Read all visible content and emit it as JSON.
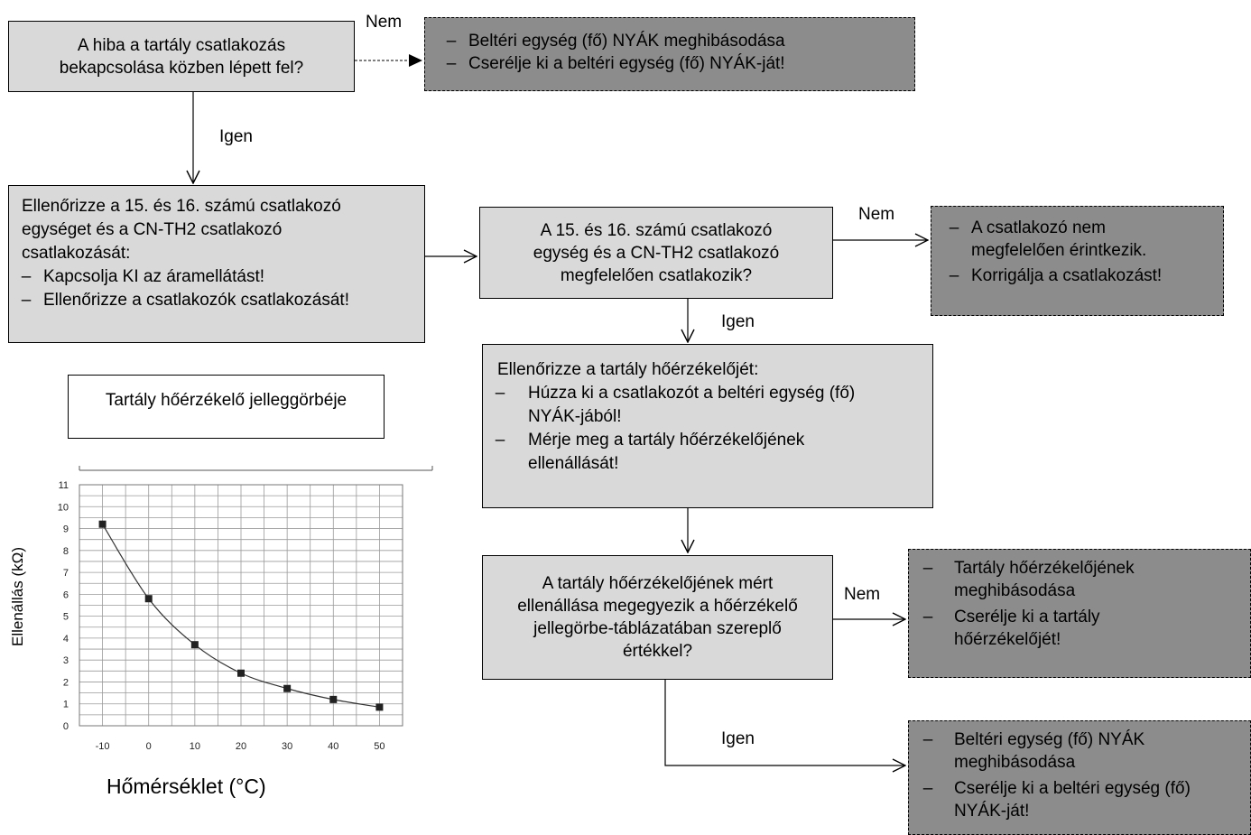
{
  "boxes": {
    "q1": [
      "A hiba a tartály csatlakozás",
      "bekapcsolása közben lépett fel?"
    ],
    "r1": [
      "Beltéri egység (fő) NYÁK meghibásodása",
      "Cserélje ki a beltéri egység (fő) NYÁK-ját!"
    ],
    "check": {
      "lines": [
        "Ellenőrizze a 15. és 16. számú csatlakozó",
        "egységet és a CN-TH2 csatlakozó",
        "csatlakozását:"
      ],
      "items": [
        "Kapcsolja KI az áramellátást!",
        "Ellenőrizze a csatlakozók csatlakozását!"
      ]
    },
    "q2": [
      "A 15. és 16. számú csatlakozó",
      "egység és a CN-TH2 csatlakozó",
      "megfelelően csatlakozik?"
    ],
    "r2": [
      [
        "A csatlakozó nem",
        "megfelelően érintkezik."
      ],
      [
        "Korrigálja a csatlakozást!"
      ]
    ],
    "sensor": {
      "title": "Ellenőrizze a tartály hőérzékelőjét:",
      "items": [
        [
          "Húzza ki a csatlakozót a beltéri egység (fő)",
          "NYÁK-jából!"
        ],
        [
          "Mérje meg a tartály hőérzékelőjének",
          "ellenállását!"
        ]
      ]
    },
    "q3": [
      "A tartály hőérzékelőjének mért",
      "ellenállása megegyezik a hőérzékelő",
      "jellegörbe-táblázatában szereplő",
      "értékkel?"
    ],
    "r3": [
      [
        "Tartály hőérzékelőjének",
        "meghibásodása"
      ],
      [
        "Cserélje ki a tartály",
        "hőérzékelőjét!"
      ]
    ],
    "r4": [
      [
        "Beltéri egység (fő) NYÁK",
        "meghibásodása"
      ],
      [
        "Cserélje ki a beltéri egység (fő)",
        "NYÁK-ját!"
      ]
    ],
    "curve_title": "Tartály hőérzékelő jelleggörbéje"
  },
  "labels": {
    "nem": "Nem",
    "igen": "Igen",
    "dash": "–"
  },
  "chart_data": {
    "type": "line",
    "x": [
      -10,
      0,
      10,
      20,
      30,
      40,
      50
    ],
    "series": [
      {
        "values": [
          9.2,
          5.8,
          3.7,
          2.4,
          1.7,
          1.2,
          0.85
        ]
      }
    ],
    "xticks": [
      "-10",
      "0",
      "10",
      "20",
      "30",
      "40",
      "50"
    ],
    "yticks": [
      "0",
      "1",
      "2",
      "3",
      "4",
      "5",
      "6",
      "7",
      "8",
      "9",
      "10",
      "11"
    ],
    "xlabel": "Hőmérséklet (°C)",
    "ylabel": "Ellenállás (kΩ)",
    "xlim": [
      -15,
      55
    ],
    "ylim": [
      0,
      11
    ],
    "grid": true
  }
}
